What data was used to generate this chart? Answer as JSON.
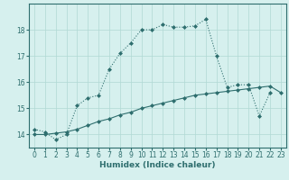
{
  "title": "",
  "xlabel": "Humidex (Indice chaleur)",
  "x_values": [
    0,
    1,
    2,
    3,
    4,
    5,
    6,
    7,
    8,
    9,
    10,
    11,
    12,
    13,
    14,
    15,
    16,
    17,
    18,
    19,
    20,
    21,
    22,
    23
  ],
  "line1_y": [
    14.2,
    14.1,
    13.8,
    14.0,
    15.1,
    15.4,
    15.5,
    16.5,
    17.1,
    17.5,
    18.0,
    18.0,
    18.2,
    18.1,
    18.1,
    18.15,
    18.4,
    17.0,
    15.8,
    15.9,
    15.9,
    14.7,
    15.6,
    null
  ],
  "line2_y": [
    14.0,
    14.0,
    14.05,
    14.1,
    14.2,
    14.35,
    14.5,
    14.6,
    14.75,
    14.85,
    15.0,
    15.1,
    15.2,
    15.3,
    15.4,
    15.5,
    15.55,
    15.6,
    15.65,
    15.7,
    15.75,
    15.8,
    15.85,
    15.6
  ],
  "line_color": "#2e6e6e",
  "bg_color": "#d6f0ee",
  "grid_color": "#b0d8d4",
  "ylim": [
    13.5,
    19.0
  ],
  "yticks": [
    14,
    15,
    16,
    17,
    18
  ],
  "xticks": [
    0,
    1,
    2,
    3,
    4,
    5,
    6,
    7,
    8,
    9,
    10,
    11,
    12,
    13,
    14,
    15,
    16,
    17,
    18,
    19,
    20,
    21,
    22,
    23
  ],
  "tick_fontsize": 5.5,
  "xlabel_fontsize": 6.5,
  "markersize": 2.0,
  "linewidth": 0.8
}
